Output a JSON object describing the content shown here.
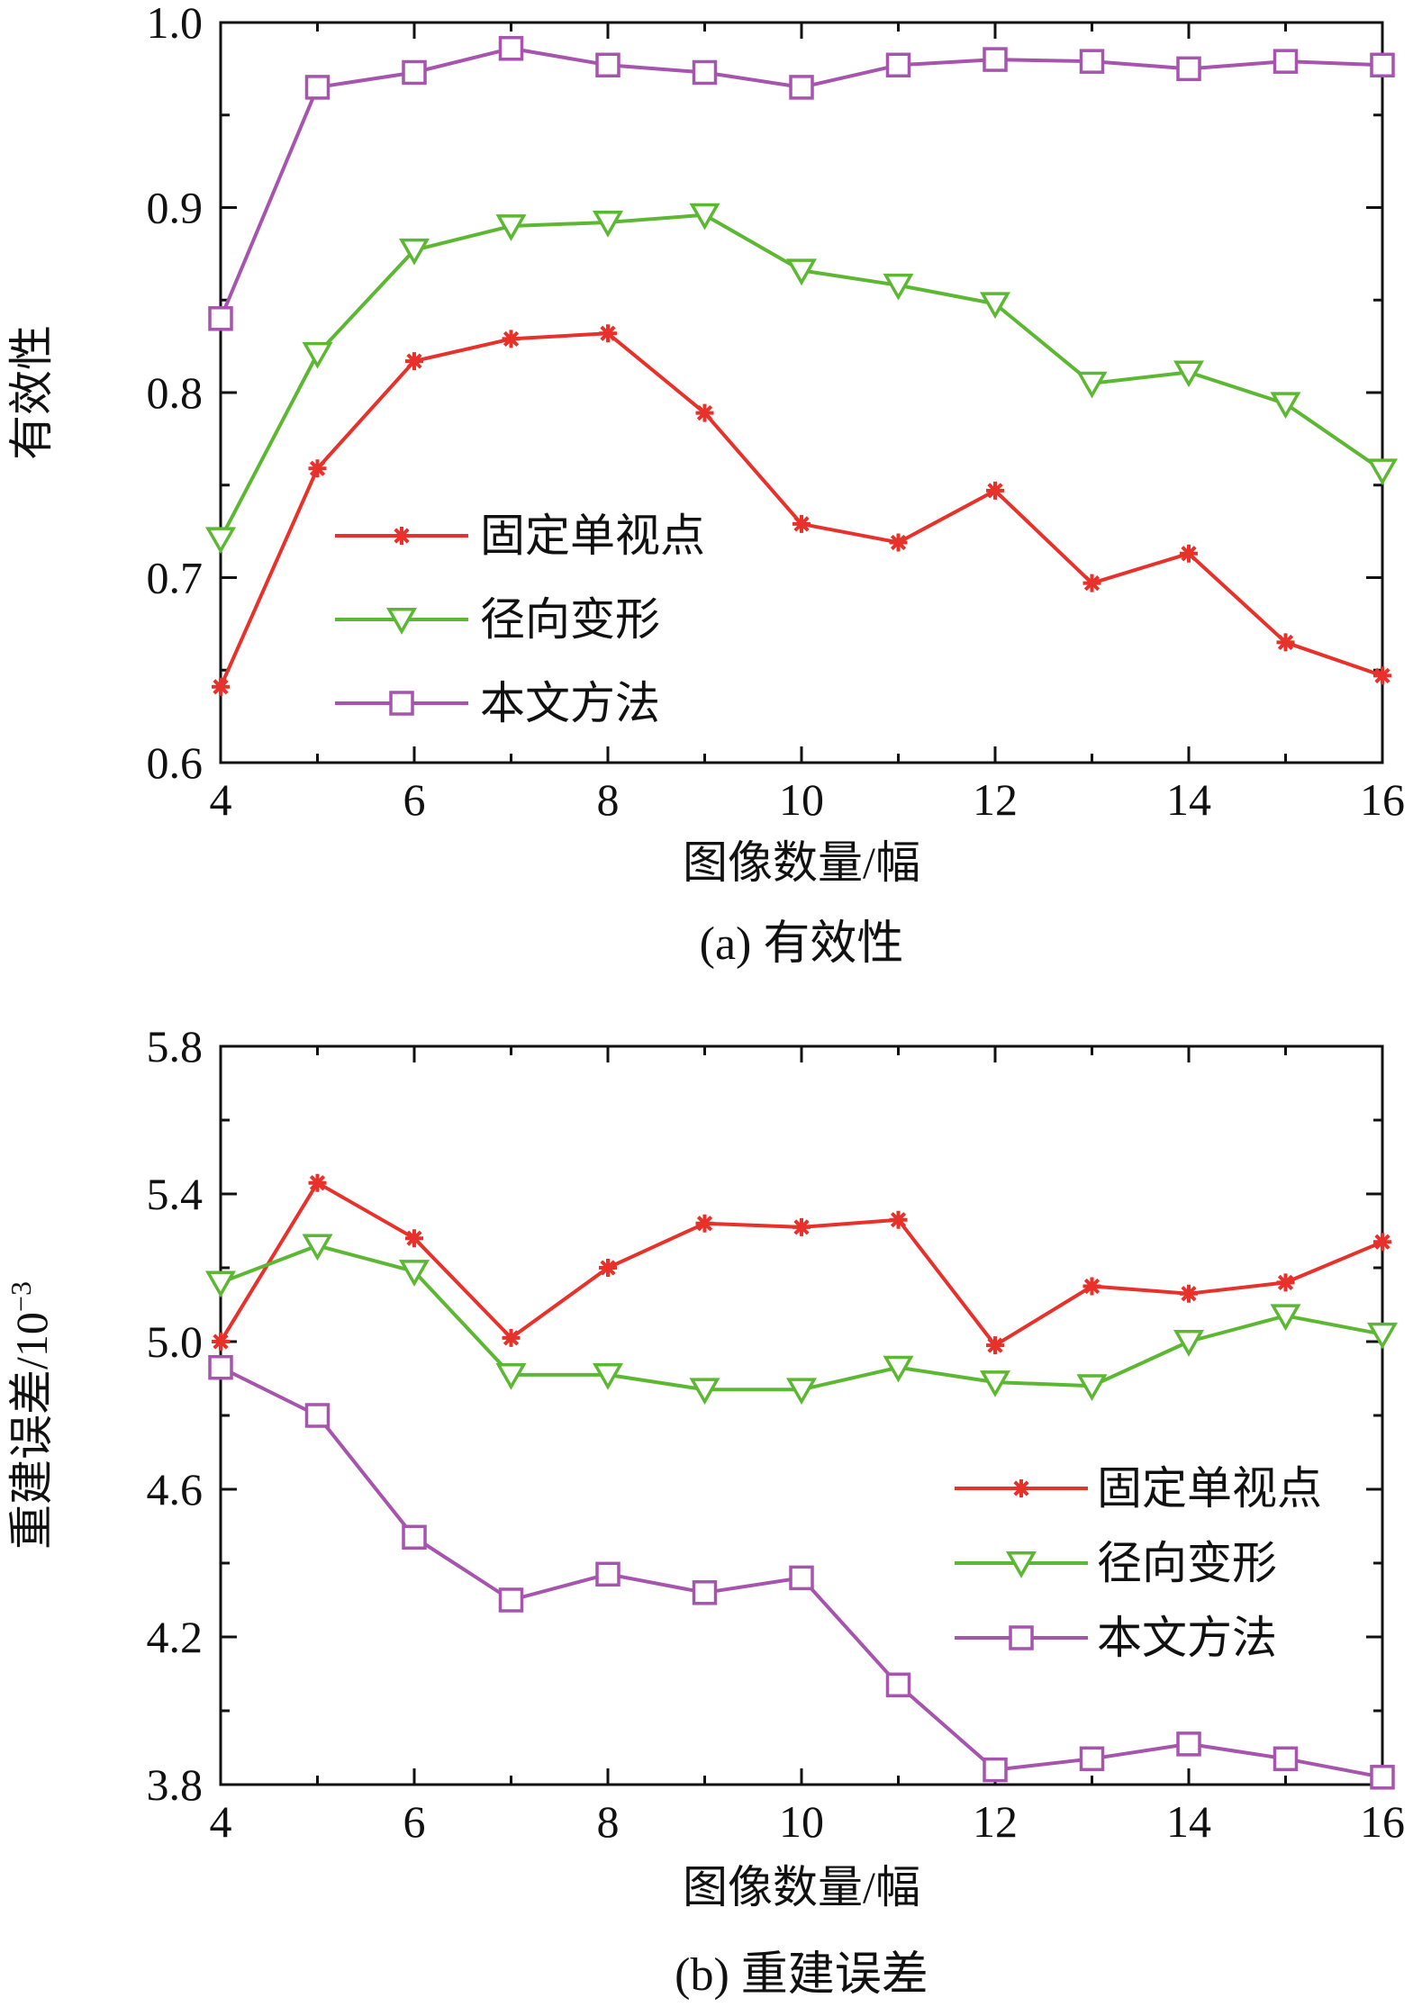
{
  "chart_data": [
    {
      "type": "line",
      "caption": "(a) 有效性",
      "xlabel": "图像数量/幅",
      "ylabel": "有效性",
      "x": [
        4,
        5,
        6,
        7,
        8,
        9,
        10,
        11,
        12,
        13,
        14,
        15,
        16
      ],
      "xlim": [
        4,
        16
      ],
      "ylim": [
        0.6,
        1.0
      ],
      "xticks": [
        "4",
        "6",
        "8",
        "10",
        "12",
        "14",
        "16"
      ],
      "yticks": [
        "0.6",
        "0.7",
        "0.8",
        "0.9",
        "1.0"
      ],
      "legend_position": "lower-left",
      "series": [
        {
          "name": "固定单视点",
          "color": "#e8312a",
          "marker": "asterisk",
          "values": [
            0.641,
            0.759,
            0.817,
            0.829,
            0.832,
            0.789,
            0.729,
            0.719,
            0.747,
            0.697,
            0.713,
            0.665,
            0.647
          ]
        },
        {
          "name": "径向变形",
          "color": "#5cb832",
          "marker": "triangle-down",
          "values": [
            0.721,
            0.821,
            0.877,
            0.89,
            0.892,
            0.896,
            0.866,
            0.858,
            0.848,
            0.805,
            0.811,
            0.794,
            0.758
          ]
        },
        {
          "name": "本文方法",
          "color": "#a654ad",
          "marker": "square",
          "values": [
            0.84,
            0.965,
            0.973,
            0.986,
            0.977,
            0.973,
            0.965,
            0.977,
            0.98,
            0.979,
            0.975,
            0.979,
            0.977
          ]
        }
      ]
    },
    {
      "type": "line",
      "caption": "(b) 重建误差",
      "xlabel": "图像数量/幅",
      "ylabel": "重建误差/10",
      "ylabel_exponent": "−3",
      "x": [
        4,
        5,
        6,
        7,
        8,
        9,
        10,
        11,
        12,
        13,
        14,
        15,
        16
      ],
      "xlim": [
        4,
        16
      ],
      "ylim": [
        3.8,
        5.8
      ],
      "xticks": [
        "4",
        "6",
        "8",
        "10",
        "12",
        "14",
        "16"
      ],
      "yticks": [
        "3.8",
        "4.2",
        "4.6",
        "5.0",
        "5.4",
        "5.8"
      ],
      "legend_position": "center-right",
      "series": [
        {
          "name": "固定单视点",
          "color": "#e8312a",
          "marker": "asterisk",
          "values": [
            5.0,
            5.43,
            5.28,
            5.01,
            5.2,
            5.32,
            5.31,
            5.33,
            4.99,
            5.15,
            5.13,
            5.16,
            5.27
          ]
        },
        {
          "name": "径向变形",
          "color": "#5cb832",
          "marker": "triangle-down",
          "values": [
            5.16,
            5.26,
            5.19,
            4.91,
            4.91,
            4.87,
            4.87,
            4.93,
            4.89,
            4.88,
            5.0,
            5.07,
            5.02
          ]
        },
        {
          "name": "本文方法",
          "color": "#a654ad",
          "marker": "square",
          "values": [
            4.93,
            4.8,
            4.47,
            4.3,
            4.37,
            4.32,
            4.36,
            4.07,
            3.84,
            3.87,
            3.91,
            3.87,
            3.82
          ]
        }
      ]
    }
  ]
}
